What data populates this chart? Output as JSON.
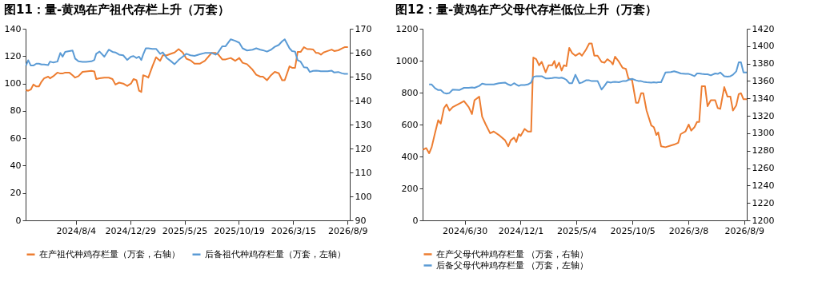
{
  "chart_data": [
    {
      "type": "line",
      "title": "图11：量-黄鸡在产祖代存栏上升（万套）",
      "legend": "bottom",
      "grid": false,
      "line_style": "solid",
      "x": [
        "2024-03-22",
        "2024-03-28",
        "2024-04-04",
        "2024-04-11",
        "2024-04-19",
        "2024-04-26",
        "2024-05-03",
        "2024-05-10",
        "2024-05-21",
        "2024-05-26",
        "2024-06-04",
        "2024-06-15",
        "2024-06-23",
        "2024-06-29",
        "2024-07-06",
        "2024-07-17",
        "2024-07-26",
        "2024-08-02",
        "2024-08-11",
        "2024-08-22",
        "2024-09-01",
        "2024-09-15",
        "2024-09-23",
        "2024-09-28",
        "2024-10-07",
        "2024-10-20",
        "2024-11-01",
        "2024-11-11",
        "2024-11-19",
        "2024-11-29",
        "2024-12-10",
        "2024-12-21",
        "2024-12-31",
        "2025-01-07",
        "2025-01-15",
        "2025-01-22",
        "2025-01-28",
        "2025-02-02",
        "2025-02-09",
        "2025-02-16",
        "2025-02-27",
        "2025-03-09",
        "2025-03-20",
        "2025-03-27",
        "2025-04-07",
        "2025-04-17",
        "2025-04-28",
        "2025-05-09",
        "2025-05-20",
        "2025-05-30",
        "2025-06-10",
        "2025-06-21",
        "2025-07-05",
        "2025-07-19",
        "2025-08-06",
        "2025-08-17",
        "2025-08-24",
        "2025-09-04",
        "2025-09-13",
        "2025-09-27",
        "2025-10-09",
        "2025-10-20",
        "2025-10-29",
        "2025-11-10",
        "2025-11-25",
        "2025-12-05",
        "2025-12-16",
        "2025-12-23",
        "2026-01-03",
        "2026-01-14",
        "2026-01-24",
        "2026-02-04",
        "2026-02-13",
        "2026-02-20",
        "2026-03-05",
        "2026-03-12",
        "2026-03-20",
        "2026-03-27",
        "2026-04-04",
        "2026-04-13",
        "2026-04-22",
        "2026-04-29",
        "2026-05-08",
        "2026-05-16",
        "2026-05-22",
        "2026-05-29",
        "2026-06-05",
        "2026-06-16",
        "2026-06-27",
        "2026-07-04",
        "2026-07-15",
        "2026-07-25",
        "2026-08-01",
        "2026-08-10"
      ],
      "xlim": [
        "2024-03-21",
        "2026-08-15"
      ],
      "xticks": [
        {
          "value": "2024-08-04",
          "label": "2024/8/4"
        },
        {
          "value": "2024-12-29",
          "label": "2024/12/29"
        },
        {
          "value": "2025-05-25",
          "label": "2025/5/25"
        },
        {
          "value": "2025-10-19",
          "label": "2025/10/19"
        },
        {
          "value": "2026-03-15",
          "label": "2026/3/15"
        },
        {
          "value": "2026-08-09",
          "label": "2026/8/9"
        }
      ],
      "ylim": [
        0,
        140
      ],
      "yticks": [
        0,
        20,
        40,
        60,
        80,
        100,
        120,
        140
      ],
      "y2lim": [
        90,
        170
      ],
      "y2ticks": [
        90,
        100,
        110,
        120,
        130,
        140,
        150,
        160,
        170
      ],
      "series": [
        {
          "name": "在产祖代种鸡存栏量（万套，右轴）",
          "color": "#ed7d31",
          "axis": "y2",
          "values": [
            144.4,
            144.1,
            144.6,
            146.7,
            145.9,
            145.9,
            147.9,
            149.3,
            150,
            149.3,
            150.2,
            151.7,
            151.3,
            151.3,
            151.7,
            151.7,
            150.6,
            149.6,
            150.2,
            152,
            152.2,
            152.4,
            152.2,
            149,
            149.3,
            149.6,
            149.6,
            149,
            146.7,
            147.5,
            147.1,
            146.1,
            147.1,
            149,
            148.5,
            144.1,
            143.6,
            150.6,
            150.2,
            149.6,
            154.3,
            158.1,
            156.6,
            158.9,
            158.9,
            159.5,
            160.1,
            161.5,
            160.1,
            157.5,
            156.8,
            155.4,
            155.4,
            156.6,
            159.9,
            159.9,
            159.3,
            157.2,
            157.2,
            157.8,
            156.6,
            157.8,
            155.8,
            155.2,
            152.9,
            150.8,
            150,
            150,
            148.5,
            150.6,
            152,
            151.4,
            148.5,
            148.5,
            154.3,
            153.7,
            153.7,
            160.3,
            160.3,
            162.3,
            161.5,
            161.5,
            161.3,
            159.9,
            159.9,
            159.2,
            160.1,
            160.7,
            161.3,
            160.7,
            161,
            161.8,
            162.3,
            162.3
          ]
        },
        {
          "name": "后备祖代种鸡存栏量（万套，左轴）",
          "color": "#5b9bd5",
          "axis": "y",
          "values": [
            113.1,
            117,
            113.1,
            113.1,
            114.5,
            114.5,
            113.9,
            113.9,
            113.5,
            116,
            115.3,
            116,
            122.3,
            119.6,
            123.1,
            123.7,
            124.1,
            118.2,
            116.2,
            115.8,
            115.8,
            116.2,
            117.2,
            121.7,
            123.3,
            119.6,
            124.7,
            123.1,
            122.7,
            121.1,
            120.6,
            117.2,
            119.6,
            120,
            118.6,
            119.6,
            117.2,
            121.1,
            125.7,
            125.7,
            125.3,
            125.3,
            121.7,
            122.7,
            118.6,
            116.6,
            114.1,
            117.2,
            119.6,
            121.7,
            120.6,
            120.2,
            121.3,
            122.3,
            122.3,
            121.1,
            122.7,
            127.2,
            127.2,
            132.3,
            131.2,
            129.8,
            125.7,
            124.1,
            124.7,
            125.7,
            124.7,
            124.3,
            123.3,
            124.7,
            126.8,
            128.2,
            130.8,
            132.3,
            125.7,
            123.7,
            123.3,
            117,
            116,
            111.9,
            111.5,
            108.4,
            109.2,
            109.4,
            109.2,
            109,
            109,
            109,
            109.4,
            108,
            108.4,
            107.4,
            107,
            107
          ]
        }
      ]
    },
    {
      "type": "line",
      "title": "图12：量-黄鸡在产父母代存栏低位上升（万套）",
      "legend": "bottom",
      "grid": false,
      "line_style": "solid",
      "x": [
        "2024-03-07",
        "2024-03-16",
        "2024-03-24",
        "2024-03-31",
        "2024-04-09",
        "2024-04-18",
        "2024-04-25",
        "2024-05-04",
        "2024-05-11",
        "2024-05-19",
        "2024-05-28",
        "2024-06-15",
        "2024-06-28",
        "2024-07-11",
        "2024-07-20",
        "2024-07-27",
        "2024-08-09",
        "2024-08-17",
        "2024-08-27",
        "2024-09-08",
        "2024-09-18",
        "2024-10-02",
        "2024-10-19",
        "2024-10-28",
        "2024-11-04",
        "2024-11-13",
        "2024-11-19",
        "2024-11-26",
        "2024-12-01",
        "2024-12-12",
        "2024-12-21",
        "2024-12-30",
        "2025-01-05",
        "2025-01-13",
        "2025-01-21",
        "2025-01-28",
        "2025-02-08",
        "2025-02-16",
        "2025-02-26",
        "2025-03-04",
        "2025-03-09",
        "2025-03-17",
        "2025-03-24",
        "2025-03-30",
        "2025-04-06",
        "2025-04-14",
        "2025-04-22",
        "2025-05-01",
        "2025-05-12",
        "2025-05-19",
        "2025-05-30",
        "2025-06-08",
        "2025-06-15",
        "2025-06-22",
        "2025-07-01",
        "2025-07-12",
        "2025-07-20",
        "2025-07-28",
        "2025-08-07",
        "2025-08-12",
        "2025-08-18",
        "2025-08-29",
        "2025-09-08",
        "2025-09-17",
        "2025-09-24",
        "2025-10-04",
        "2025-10-15",
        "2025-10-21",
        "2025-10-29",
        "2025-11-04",
        "2025-11-13",
        "2025-11-26",
        "2025-12-03",
        "2025-12-10",
        "2025-12-15",
        "2025-12-23",
        "2026-01-04",
        "2026-01-19",
        "2026-01-28",
        "2026-02-08",
        "2026-02-15",
        "2026-02-28",
        "2026-03-09",
        "2026-03-16",
        "2026-03-25",
        "2026-04-01",
        "2026-04-07",
        "2026-04-14",
        "2026-04-23",
        "2026-04-30",
        "2026-05-09",
        "2026-05-21",
        "2026-05-28",
        "2026-06-04",
        "2026-06-15",
        "2026-06-24",
        "2026-07-02",
        "2026-07-09",
        "2026-07-18",
        "2026-07-25",
        "2026-07-31",
        "2026-08-07",
        "2026-08-16"
      ],
      "xlim": [
        "2024-03-06",
        "2026-08-16"
      ],
      "xticks": [
        {
          "value": "2024-06-30",
          "label": "2024/6/30"
        },
        {
          "value": "2024-12-01",
          "label": "2024/12/1"
        },
        {
          "value": "2025-05-04",
          "label": "2025/5/4"
        },
        {
          "value": "2025-10-05",
          "label": "2025/10/5"
        },
        {
          "value": "2026-03-08",
          "label": "2026/3/8"
        },
        {
          "value": "2026-08-09",
          "label": "2026/8/9"
        }
      ],
      "ylim": [
        0,
        1200
      ],
      "yticks": [
        0,
        200,
        400,
        600,
        800,
        1000,
        1200
      ],
      "y2lim": [
        1200,
        1420
      ],
      "y2ticks": [
        1200,
        1220,
        1240,
        1260,
        1280,
        1300,
        1320,
        1340,
        1360,
        1380,
        1400,
        1420
      ],
      "series": [
        {
          "name": "在产父母代种鸡存栏量 （万套，右轴）",
          "color": "#ed7d31",
          "axis": "y2",
          "values": [
            1281,
            1283,
            1277,
            1284,
            1300,
            1315,
            1311,
            1329,
            1333,
            1326,
            1330,
            1334,
            1337,
            1330,
            1322,
            1338,
            1342,
            1319,
            1310,
            1300,
            1302,
            1298,
            1292,
            1285,
            1292,
            1295,
            1290,
            1299,
            1297,
            1305,
            1302,
            1302,
            1387,
            1385,
            1378,
            1382,
            1370,
            1378,
            1378,
            1383,
            1375,
            1381,
            1372,
            1378,
            1377,
            1398,
            1392,
            1389,
            1392,
            1389,
            1396,
            1403,
            1403,
            1389,
            1389,
            1382,
            1381,
            1385,
            1382,
            1379,
            1388,
            1382,
            1375,
            1374,
            1363,
            1361,
            1335,
            1335,
            1346,
            1346,
            1326,
            1309,
            1307,
            1298,
            1301,
            1285,
            1284,
            1286,
            1287,
            1289,
            1299,
            1302,
            1310,
            1303,
            1307,
            1313,
            1313,
            1354,
            1354,
            1331,
            1338,
            1338,
            1329,
            1328,
            1353,
            1342,
            1342,
            1326,
            1332,
            1345,
            1346,
            1339,
            1339
          ]
        },
        {
          "name": "后备父母代种鸡存栏量 （万套，左轴）",
          "color": "#5b9bd5",
          "axis": "y",
          "values": [
            null,
            null,
            851,
            851,
            828,
            816,
            816,
            798,
            794,
            798,
            819,
            816,
            830,
            830,
            833,
            830,
            842,
            856,
            851,
            851,
            851,
            859,
            863,
            851,
            845,
            859,
            851,
            842,
            847,
            847,
            851,
            863,
            898,
            903,
            903,
            903,
            889,
            889,
            891,
            894,
            894,
            891,
            894,
            889,
            880,
            859,
            859,
            912,
            859,
            863,
            877,
            877,
            872,
            872,
            873,
            819,
            842,
            868,
            863,
            866,
            868,
            865,
            872,
            872,
            880,
            886,
            877,
            873,
            872,
            868,
            865,
            863,
            865,
            863,
            865,
            865,
            926,
            929,
            934,
            926,
            920,
            917,
            917,
            912,
            903,
            920,
            920,
            917,
            915,
            915,
            908,
            920,
            917,
            926,
            903,
            900,
            903,
            912,
            933,
            990,
            990,
            926,
            926
          ]
        }
      ]
    }
  ]
}
